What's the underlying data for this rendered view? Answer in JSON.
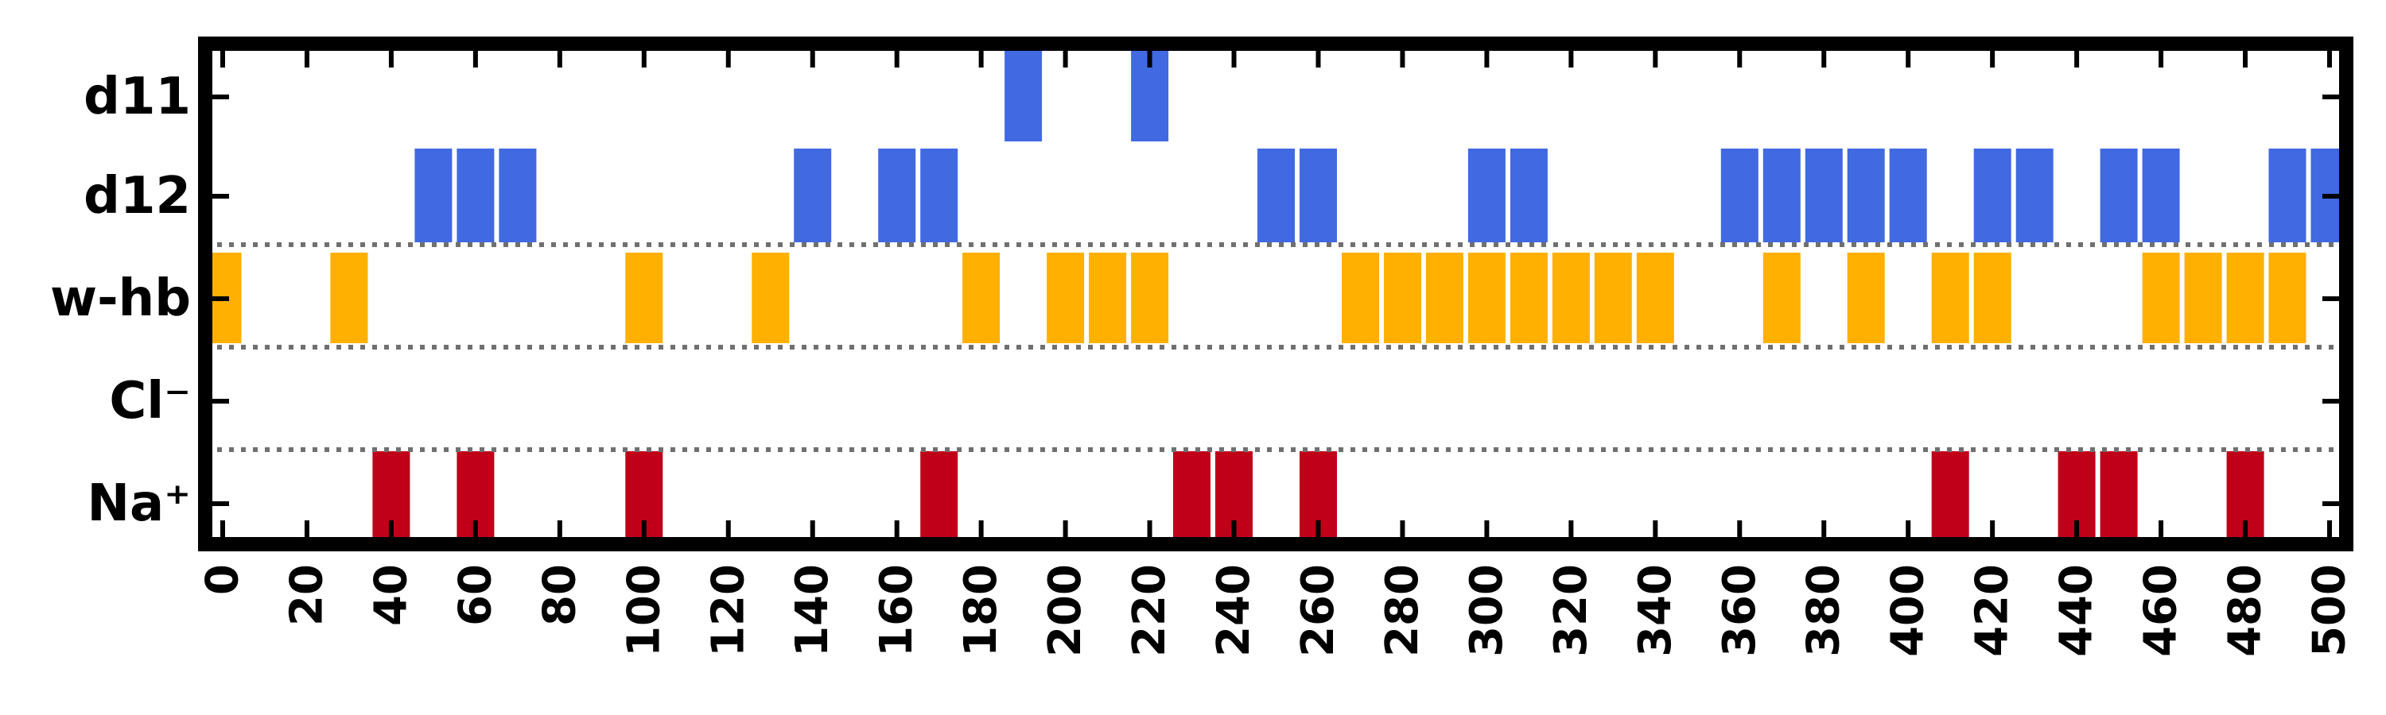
{
  "chart_data": {
    "type": "event-raster",
    "title": "",
    "xlabel": "",
    "ylabel": "",
    "xlim": [
      -2,
      502
    ],
    "xticks": [
      0,
      20,
      40,
      60,
      80,
      100,
      120,
      140,
      160,
      180,
      200,
      220,
      240,
      260,
      280,
      300,
      320,
      340,
      360,
      380,
      400,
      420,
      440,
      460,
      480,
      500
    ],
    "tick_labels": [
      "0",
      "20",
      "40",
      "60",
      "80",
      "100",
      "120",
      "140",
      "160",
      "180",
      "200",
      "220",
      "240",
      "260",
      "280",
      "300",
      "320",
      "340",
      "360",
      "380",
      "400",
      "420",
      "440",
      "460",
      "480",
      "500"
    ],
    "bin_width": 10,
    "grid": false,
    "rows": [
      {
        "label": "d11",
        "color": "#4169e1",
        "events": [
          190,
          220
        ]
      },
      {
        "label": "d12",
        "color": "#4169e1",
        "events": [
          50,
          60,
          70,
          140,
          160,
          170,
          250,
          260,
          300,
          310,
          360,
          370,
          380,
          390,
          400,
          420,
          430,
          450,
          460,
          490,
          500
        ]
      },
      {
        "label": "w-hb",
        "color": "#ffb000",
        "events": [
          0,
          30,
          100,
          130,
          180,
          200,
          210,
          220,
          270,
          280,
          290,
          300,
          310,
          320,
          330,
          340,
          370,
          390,
          410,
          420,
          460,
          470,
          480,
          490
        ]
      },
      {
        "label": "Cl⁻",
        "color": "#c00018",
        "events": []
      },
      {
        "label": "Na⁺",
        "color": "#c00018",
        "events": [
          40,
          60,
          100,
          170,
          230,
          240,
          260,
          410,
          440,
          450,
          480
        ]
      }
    ]
  }
}
